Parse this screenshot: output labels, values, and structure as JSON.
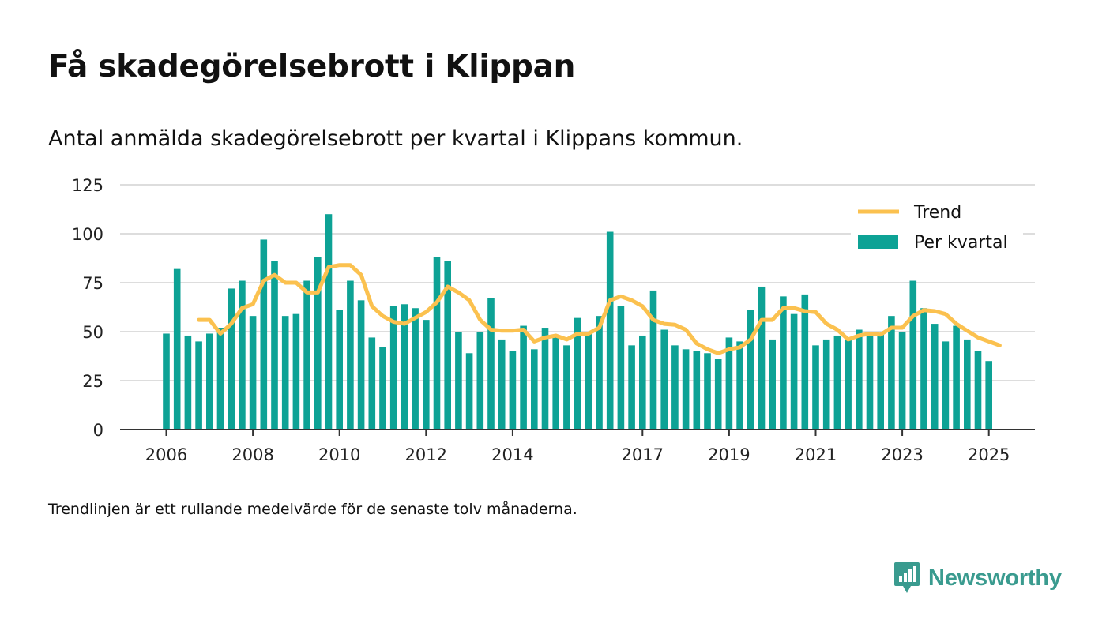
{
  "title": "Få skadegörelsebrott i Klippan",
  "subtitle": "Antal anmälda skadegörelsebrott per kvartal i Klippans kommun.",
  "note": "Trendlinjen är ett rullande medelvärde för de senaste tolv månaderna.",
  "brand": {
    "name": "Newsworthy",
    "icon": "newsworthy-logo-icon",
    "color": "#3a9b8f"
  },
  "colors": {
    "bar": "#0da295",
    "trend": "#fbc14f",
    "grid": "#dddddd",
    "axis": "#333333"
  },
  "chart_data": {
    "type": "bar",
    "title": "Få skadegörelsebrott i Klippan",
    "subtitle": "Antal anmälda skadegörelsebrott per kvartal i Klippans kommun.",
    "ylim": [
      0,
      125
    ],
    "yticks": [
      0,
      25,
      50,
      75,
      100,
      125
    ],
    "xticks": [
      {
        "label": "2006",
        "index": 0
      },
      {
        "label": "2008",
        "index": 8
      },
      {
        "label": "2010",
        "index": 16
      },
      {
        "label": "2012",
        "index": 24
      },
      {
        "label": "2014",
        "index": 32
      },
      {
        "label": "2017",
        "index": 44
      },
      {
        "label": "2019",
        "index": 52
      },
      {
        "label": "2021",
        "index": 60
      },
      {
        "label": "2023",
        "index": 68
      },
      {
        "label": "2025",
        "index": 76
      }
    ],
    "grid": true,
    "legend": "top-right",
    "series": [
      {
        "name": "Per kvartal",
        "type": "bar",
        "values": [
          49,
          82,
          48,
          45,
          49,
          52,
          72,
          76,
          58,
          97,
          86,
          58,
          59,
          76,
          88,
          110,
          61,
          76,
          66,
          47,
          42,
          63,
          64,
          62,
          56,
          88,
          86,
          50,
          39,
          50,
          67,
          46,
          40,
          53,
          41,
          52,
          47,
          43,
          57,
          49,
          58,
          101,
          63,
          43,
          48,
          71,
          51,
          43,
          41,
          40,
          39,
          36,
          47,
          45,
          61,
          73,
          46,
          68,
          59,
          69,
          43,
          46,
          48,
          46,
          51,
          50,
          49,
          58,
          50,
          76,
          62,
          54,
          45,
          53,
          46,
          40,
          35
        ]
      },
      {
        "name": "Trend",
        "type": "line",
        "start_index": 3,
        "values": [
          56,
          56,
          49,
          54,
          62,
          64,
          76,
          79,
          75,
          75,
          70,
          70,
          83,
          84,
          84,
          79,
          63,
          58,
          55,
          54,
          57,
          60,
          65,
          73,
          70,
          66,
          56,
          51,
          50.5,
          50.5,
          51,
          45,
          47,
          48,
          46,
          49,
          49,
          52,
          66,
          68,
          66,
          63,
          56,
          54,
          53.5,
          51,
          44,
          41,
          39,
          41,
          42,
          46,
          56,
          56,
          62,
          62,
          60.5,
          60,
          54,
          51,
          46,
          48,
          49,
          48.5,
          52,
          52,
          58,
          61,
          60.5,
          59,
          54,
          50.5,
          47,
          45,
          43
        ]
      }
    ]
  }
}
